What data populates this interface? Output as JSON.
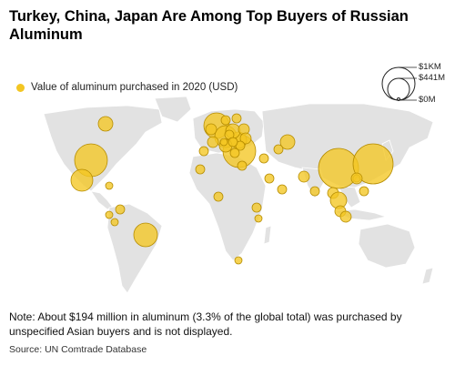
{
  "title": "Turkey, China, Japan Are Among Top Buyers of Russian Aluminum",
  "legend": {
    "label": "Value of aluminum purchased in 2020 (USD)",
    "color": "#f3c623"
  },
  "size_legend": {
    "values": [
      "$1KM",
      "$441M",
      "$0M"
    ]
  },
  "note": "Note: About $194 million in aluminum (3.3% of the global total) was purchased by unspecified Asian buyers and is not displayed.",
  "source": "Source: UN Comtrade Database",
  "bubbles": [
    {
      "name": "China",
      "r": 22
    },
    {
      "name": "Japan",
      "r": 22
    },
    {
      "name": "Turkey",
      "r": 18
    },
    {
      "name": "Netherlands",
      "r": 14
    },
    {
      "name": "Germany",
      "r": 12
    },
    {
      "name": "Hungary",
      "r": 9
    },
    {
      "name": "Poland",
      "r": 8
    },
    {
      "name": "Italy",
      "r": 7
    },
    {
      "name": "France",
      "r": 6
    },
    {
      "name": "United Kingdom",
      "r": 6
    },
    {
      "name": "Sweden",
      "r": 5
    },
    {
      "name": "Finland",
      "r": 5
    },
    {
      "name": "Belarus",
      "r": 6
    },
    {
      "name": "Ukraine",
      "r": 6
    },
    {
      "name": "Romania",
      "r": 5
    },
    {
      "name": "Greece",
      "r": 5
    },
    {
      "name": "Spain",
      "r": 5
    },
    {
      "name": "Czechia",
      "r": 5
    },
    {
      "name": "Austria",
      "r": 5
    },
    {
      "name": "Slovenia",
      "r": 4
    },
    {
      "name": "Kazakhstan",
      "r": 8
    },
    {
      "name": "Uzbekistan",
      "r": 5
    },
    {
      "name": "Iran",
      "r": 5
    },
    {
      "name": "Egypt",
      "r": 5
    },
    {
      "name": "Morocco",
      "r": 5
    },
    {
      "name": "India",
      "r": 6
    },
    {
      "name": "Bangladesh",
      "r": 5
    },
    {
      "name": "Thailand",
      "r": 6
    },
    {
      "name": "Vietnam",
      "r": 9
    },
    {
      "name": "Malaysia",
      "r": 6
    },
    {
      "name": "Indonesia",
      "r": 6
    },
    {
      "name": "Philippines",
      "r": 5
    },
    {
      "name": "Taiwan",
      "r": 4
    },
    {
      "name": "South Korea",
      "r": 6
    },
    {
      "name": "Canada",
      "r": 8
    },
    {
      "name": "United States",
      "r": 18
    },
    {
      "name": "Mexico",
      "r": 12
    },
    {
      "name": "Cuba",
      "r": 4
    },
    {
      "name": "Colombia",
      "r": 5
    },
    {
      "name": "Ecuador",
      "r": 4
    },
    {
      "name": "Peru",
      "r": 4
    },
    {
      "name": "Brazil",
      "r": 13
    },
    {
      "name": "Nigeria",
      "r": 5
    },
    {
      "name": "Kenya",
      "r": 5
    },
    {
      "name": "Tanzania",
      "r": 4
    },
    {
      "name": "South Africa",
      "r": 4
    },
    {
      "name": "Saudi Arabia",
      "r": 5
    },
    {
      "name": "UAE",
      "r": 5
    }
  ]
}
